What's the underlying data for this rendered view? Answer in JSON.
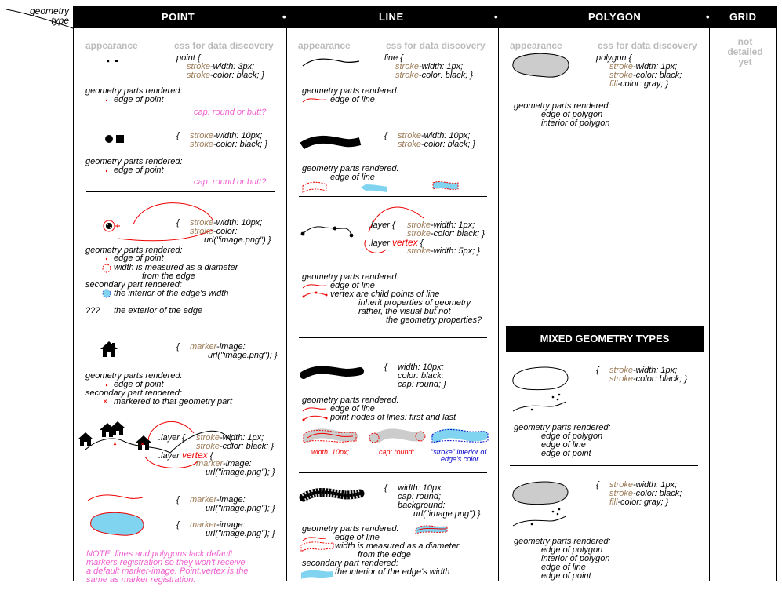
{
  "header": {
    "geometry_type_line1": "geometry",
    "geometry_type_line2": "type",
    "columns": [
      "POINT",
      "LINE",
      "POLYGON",
      "GRID"
    ],
    "separator": "•"
  },
  "subheaders": {
    "appearance": "appearance",
    "css": "css for data discovery"
  },
  "grid": {
    "line1": "not",
    "line2": "detailed",
    "line3": "yet"
  },
  "point": {
    "s1": {
      "css": [
        "point {",
        "stroke-width: 3px;",
        "stroke-color: black;   }"
      ],
      "rendered": "geometry parts rendered:",
      "part": "edge of point",
      "note": "cap: round or butt?"
    },
    "s2": {
      "css": [
        "{",
        "stroke-width: 10px;",
        "stroke-color: black;    }"
      ],
      "rendered": "geometry parts rendered:",
      "part": "edge of point",
      "note": "cap: round or butt?"
    },
    "s3": {
      "css": [
        "{",
        "stroke-width: 10px;",
        "stroke-color:",
        "url(\"image.png\") }"
      ],
      "rendered": "geometry parts rendered:",
      "part": "edge of point",
      "width1": "width is measured as a diameter",
      "width2": "from the edge",
      "secondary": "secondary part rendered:",
      "interior": "the interior of the edge's width",
      "qqq": "???",
      "exterior": "the exterior of the edge"
    },
    "s4": {
      "css": [
        "{",
        "marker-image:",
        "url(\"image.png\"); }"
      ],
      "rendered": "geometry parts rendered:",
      "part": "edge of point",
      "secondary": "secondary part rendered:",
      "marker": "markered to that geometry part"
    },
    "s5": {
      "css": [
        ".layer {",
        "stroke-width: 1px;",
        "stroke-color: black; }",
        ".layer",
        "vertex",
        "{",
        "marker-image:",
        "url(\"image.png\"); }"
      ]
    },
    "s6": {
      "css_line": [
        "{",
        "marker-image:",
        "url(\"image.png\"); }"
      ],
      "css_poly": [
        "{",
        "marker-image:",
        "url(\"image.png\"); }"
      ]
    },
    "note": [
      "NOTE: lines and polygons lack default",
      "markers registration so they won't receive",
      "a default marker-image. Point.vertex is the",
      "same as marker registration."
    ]
  },
  "line": {
    "s1": {
      "css": [
        "line {",
        "stroke-width: 1px;",
        "stroke-color: black;   }"
      ],
      "rendered": "geometry parts rendered:",
      "part": "edge of line"
    },
    "s2": {
      "css": [
        "{",
        "stroke-width: 10px;",
        "stroke-color: black;    }"
      ],
      "rendered": "geometry parts rendered:",
      "part": "edge of line"
    },
    "s3": {
      "css": [
        ".layer {",
        "stroke-width: 1px;",
        "stroke-color: black;   }",
        ".layer",
        "vertex",
        "{",
        "stroke-width: 5px;     }"
      ],
      "rendered": "geometry parts rendered:",
      "part": "edge of line",
      "vertex": "vertex are child points of line",
      "inherit1": "inherit properties of geometry",
      "inherit2": "rather, the visual but not",
      "inherit3": "the geometry properties?"
    },
    "s4": {
      "css": [
        "{",
        "width: 10px;",
        "color: black;",
        "cap: round;   }"
      ],
      "rendered": "geometry parts rendered:",
      "part": "edge of line",
      "nodes": "point nodes of lines: first and last",
      "lbl_width": "width: 10px;",
      "lbl_cap": "cap: round;",
      "lbl_stroke1": "\"stroke\" interior of",
      "lbl_stroke2": "edge's color"
    },
    "s5": {
      "css": [
        "{",
        "width: 10px;",
        "cap: round;",
        "background:",
        "url(\"image.png\")  }"
      ],
      "rendered": "geometry parts rendered:",
      "part": "edge of line",
      "width1": "width is measured as a diameter",
      "width2": "from the edge",
      "secondary": "secondary part rendered:",
      "interior": "the interior of the edge's width"
    }
  },
  "polygon": {
    "s1": {
      "css": [
        "polygon {",
        "stroke-width: 1px;",
        "stroke-color: black;",
        "fill-color: gray;   }"
      ],
      "rendered": "geometry parts rendered:",
      "part1": "edge of polygon",
      "part2": "interior of polygon"
    },
    "mixed_title": "MIXED GEOMETRY TYPES",
    "m1": {
      "css": [
        "{",
        "stroke-width: 1px;",
        "stroke-color: black;    }"
      ],
      "rendered": "geometry parts rendered:",
      "parts": [
        "edge of polygon",
        "edge of line",
        "edge of point"
      ]
    },
    "m2": {
      "css": [
        "{",
        "stroke-width: 1px;",
        "stroke-color: black;",
        "fill-color: gray;   }"
      ],
      "rendered": "geometry parts rendered:",
      "parts": [
        "edge of polygon",
        "interior of polygon",
        "edge of line",
        "edge of point"
      ]
    }
  },
  "colors": {
    "brown": "#9b7a55",
    "pink": "#f060d0",
    "red": "#e00000",
    "light_blue": "#80d4f0",
    "gray_fill": "#cccccc"
  }
}
